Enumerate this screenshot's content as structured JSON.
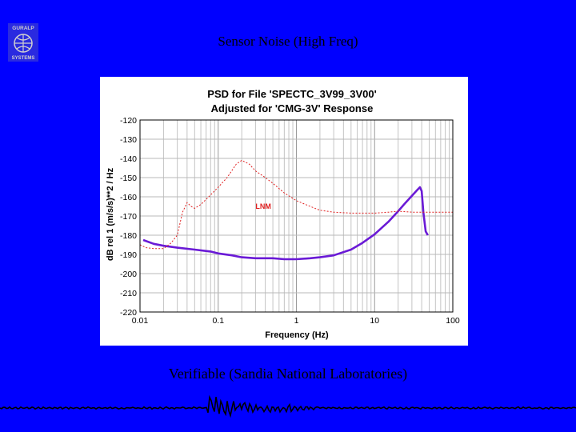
{
  "slide": {
    "title": "Sensor Noise (High Freq)",
    "caption": "Verifiable (Sandia National Laboratories)",
    "logo_text": "GURALP SYSTEMS",
    "background_color": "#0000ff"
  },
  "chart_data": {
    "type": "line",
    "title": "PSD for File 'SPECTC_3V99_3V00'",
    "subtitle": "Adjusted for 'CMG-3V' Response",
    "xlabel": "Frequency (Hz)",
    "ylabel": "dB rel 1 (m/s/s)**2 / Hz",
    "xscale": "log",
    "xlim": [
      0.01,
      100
    ],
    "ylim": [
      -220,
      -120
    ],
    "grid": true,
    "x_ticks": [
      "0.01",
      "0.1",
      "1",
      "10",
      "100"
    ],
    "y_ticks": [
      "-120",
      "-130",
      "-140",
      "-150",
      "-160",
      "-170",
      "-180",
      "-190",
      "-200",
      "-210",
      "-220"
    ],
    "annotations": [
      {
        "text": "LNM",
        "x": 0.3,
        "y": -164.5,
        "color": "#e02020"
      }
    ],
    "series": [
      {
        "name": "",
        "color": "#6a1ad6",
        "style": "solid",
        "x": [
          0.011,
          0.015,
          0.02,
          0.03,
          0.05,
          0.08,
          0.1,
          0.15,
          0.2,
          0.3,
          0.5,
          0.7,
          1,
          1.5,
          2,
          3,
          5,
          7,
          10,
          15,
          20,
          25,
          30,
          35,
          38,
          40,
          42,
          45,
          48
        ],
        "y": [
          -182.5,
          -184.5,
          -185.5,
          -186.5,
          -187.5,
          -188.5,
          -189.5,
          -190.5,
          -191.5,
          -192,
          -192,
          -192.5,
          -192.5,
          -192,
          -191.5,
          -190.5,
          -187.5,
          -184,
          -179.5,
          -173,
          -167.5,
          -163,
          -159.5,
          -156.5,
          -155,
          -157,
          -168,
          -178,
          -180
        ]
      },
      {
        "name": "LNM",
        "color": "#e02020",
        "style": "dotted",
        "x": [
          0.01,
          0.012,
          0.015,
          0.02,
          0.025,
          0.03,
          0.035,
          0.04,
          0.045,
          0.05,
          0.06,
          0.08,
          0.1,
          0.13,
          0.17,
          0.2,
          0.25,
          0.3,
          0.4,
          0.5,
          0.7,
          1,
          1.5,
          2,
          3,
          5,
          7,
          10,
          15,
          20,
          30,
          50,
          100
        ],
        "y": [
          -185,
          -186.5,
          -187,
          -187,
          -184,
          -180,
          -168,
          -163,
          -165,
          -166,
          -164,
          -159,
          -155,
          -150,
          -143,
          -141,
          -143,
          -146.5,
          -150,
          -153,
          -158,
          -162,
          -165,
          -167,
          -168,
          -168.5,
          -168.5,
          -168.5,
          -168,
          -167.5,
          -168,
          -168,
          -168
        ]
      }
    ]
  }
}
